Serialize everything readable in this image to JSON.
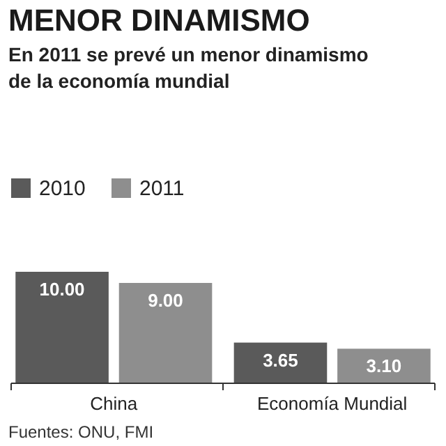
{
  "chart_data": {
    "type": "bar",
    "title": "MENOR DINAMISMO",
    "subtitle": "En 2011 se prevé un menor dinamismo de la economía mundial",
    "categories": [
      "China",
      "Economía Mundial"
    ],
    "series": [
      {
        "name": "2010",
        "color": "#5a5a5a",
        "values": [
          10.0,
          3.65
        ],
        "value_labels": [
          "10.00",
          "3.65"
        ]
      },
      {
        "name": "2011",
        "color": "#8e8e8e",
        "values": [
          9.0,
          3.1
        ],
        "value_labels": [
          "9.00",
          "3.10"
        ]
      }
    ],
    "legend": "top left",
    "annotations": [
      "Fuentes: ONU, FMI"
    ]
  }
}
